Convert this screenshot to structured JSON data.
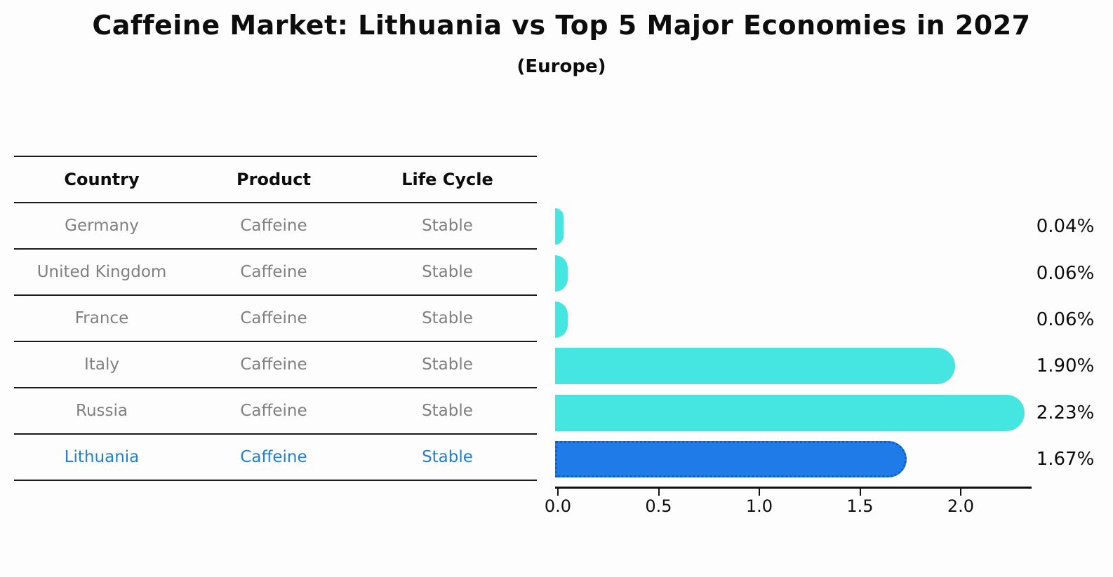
{
  "title": "Caffeine Market: Lithuania vs Top 5 Major Economies in 2027",
  "subtitle": "(Europe)",
  "table": {
    "headers": [
      "Country",
      "Product",
      "Life Cycle"
    ]
  },
  "chart_data": {
    "type": "bar",
    "orientation": "horizontal",
    "title": "Caffeine Market: Lithuania vs Top 5 Major Economies in 2027",
    "subtitle": "(Europe)",
    "categories": [
      "Germany",
      "United Kingdom",
      "France",
      "Italy",
      "Russia",
      "Lithuania"
    ],
    "values": [
      0.04,
      0.06,
      0.06,
      1.9,
      2.23,
      1.67
    ],
    "value_labels": [
      "0.04%",
      "0.06%",
      "0.06%",
      "1.90%",
      "2.23%",
      "1.67%"
    ],
    "rows": [
      {
        "country": "Germany",
        "product": "Caffeine",
        "life_cycle": "Stable",
        "value": 0.04,
        "label": "0.04%",
        "highlight": false
      },
      {
        "country": "United Kingdom",
        "product": "Caffeine",
        "life_cycle": "Stable",
        "value": 0.06,
        "label": "0.06%",
        "highlight": false
      },
      {
        "country": "France",
        "product": "Caffeine",
        "life_cycle": "Stable",
        "value": 0.06,
        "label": "0.06%",
        "highlight": false
      },
      {
        "country": "Italy",
        "product": "Caffeine",
        "life_cycle": "Stable",
        "value": 1.9,
        "label": "1.90%",
        "highlight": false
      },
      {
        "country": "Russia",
        "product": "Caffeine",
        "life_cycle": "Stable",
        "value": 2.23,
        "label": "2.23%",
        "highlight": false
      },
      {
        "country": "Lithuania",
        "product": "Caffeine",
        "life_cycle": "Stable",
        "value": 1.67,
        "label": "1.67%",
        "highlight": true
      }
    ],
    "x_ticks": [
      "0.0",
      "0.5",
      "1.0",
      "1.5",
      "2.0"
    ],
    "x_tick_values": [
      0,
      0.5,
      1.0,
      1.5,
      2.0
    ],
    "xlim": [
      0,
      2.35
    ],
    "grid": false,
    "legend": "none",
    "colors": {
      "bar_default": "#45e6e1",
      "bar_highlight": "#1e7be8",
      "bar_highlight_border": "#0e5fc6",
      "row_text": "#808080",
      "highlight_text": "#2080d5",
      "text": "#0d0d0d"
    }
  }
}
